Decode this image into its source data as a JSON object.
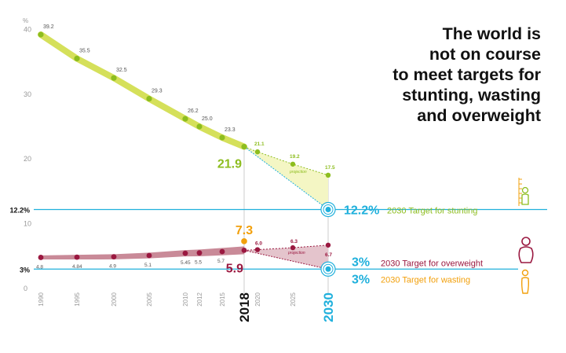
{
  "headline": {
    "line1": "The world is",
    "line2": "not on course",
    "line3": "to meet targets for",
    "line4": "stunting, wasting",
    "line5": "and overweight"
  },
  "colors": {
    "stunting": "#8dbd1f",
    "stunting_band": "#d5e05a",
    "overweight": "#9a1840",
    "overweight_band": "#c98a98",
    "wasting": "#f2a00c",
    "target": "#20b0dc",
    "axis_text": "#999999"
  },
  "chart_data": {
    "type": "line",
    "y_unit_label": "%",
    "ylim": [
      0,
      40
    ],
    "y_ticks": [
      "0",
      "10",
      "20",
      "30",
      "40"
    ],
    "x_tick_labels": [
      "1990",
      "1995",
      "2000",
      "2005",
      "2010",
      "2012",
      "2015",
      "2018",
      "2020",
      "2025",
      "2030"
    ],
    "x_tick_values": [
      1990,
      1995,
      2000,
      2005,
      2010,
      2012,
      2015,
      2018,
      2020,
      2025,
      2030
    ],
    "highlight_years": [
      "2018",
      "2030"
    ],
    "series": [
      {
        "name": "stunting",
        "x": [
          1990,
          1995,
          2000,
          2005,
          2010,
          2012,
          2015,
          2018
        ],
        "values": [
          39.2,
          35.5,
          32.5,
          29.3,
          26.2,
          25.0,
          23.3,
          21.9
        ],
        "labels": [
          "39.2",
          "35.5",
          "32.5",
          "29.3",
          "26.2",
          "25.0",
          "23.3",
          "21.9"
        ],
        "projection_x": [
          2020,
          2025,
          2030
        ],
        "projection_values": [
          21.1,
          19.2,
          17.5
        ],
        "projection_labels": [
          "21.1",
          "19.2",
          "17.5"
        ],
        "projection_note": "projection",
        "target_value": 12.2,
        "target_axis_label": "12.2%",
        "target_pct": "12.2%",
        "target_text": "2030 Target for stunting"
      },
      {
        "name": "overweight",
        "x": [
          1990,
          1995,
          2000,
          2005,
          2010,
          2012,
          2015,
          2018
        ],
        "values": [
          4.8,
          4.84,
          4.9,
          5.1,
          5.45,
          5.5,
          5.7,
          5.9
        ],
        "labels": [
          "4.8",
          "4.84",
          "4.9",
          "5.1",
          "5.45",
          "5.5",
          "5.7",
          "5.9"
        ],
        "projection_x": [
          2020,
          2025,
          2030
        ],
        "projection_values": [
          6.0,
          6.3,
          6.7
        ],
        "projection_labels": [
          "6.0",
          "6.3",
          "6.7"
        ],
        "projection_note": "projection",
        "target_value": 3,
        "target_axis_label": "3%",
        "target_pct": "3%",
        "target_text": "2030 Target for overweight"
      },
      {
        "name": "wasting",
        "x": [
          2018
        ],
        "values": [
          7.3
        ],
        "labels": [
          "7.3"
        ],
        "target_value": 3,
        "target_pct": "3%",
        "target_text": "2030 Target for wasting"
      }
    ]
  }
}
